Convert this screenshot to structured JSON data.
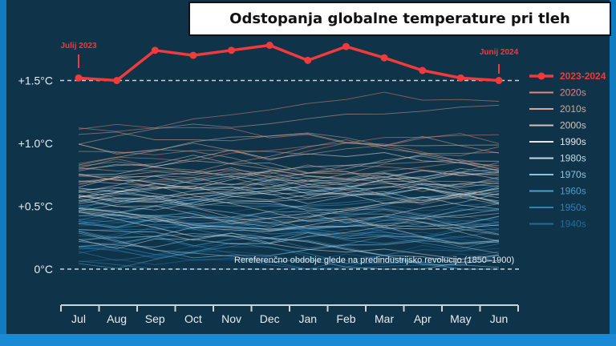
{
  "title": "Odstopanja globalne temperature pri tleh",
  "colors": {
    "background": "#0f3349",
    "frame": "#0f7bc0",
    "highlight": "#ef3b3b",
    "axis": "#c9d4dc",
    "label": "#e6edf2"
  },
  "chart_data": {
    "type": "line",
    "categories": [
      "Jul",
      "Aug",
      "Sep",
      "Oct",
      "Nov",
      "Dec",
      "Jan",
      "Feb",
      "Mar",
      "Apr",
      "May",
      "Jun"
    ],
    "ylim": [
      0,
      2.0
    ],
    "y_ticks": [
      {
        "value": 0,
        "label": "0°C"
      },
      {
        "value": 0.5,
        "label": "+0.5°C"
      },
      {
        "value": 1.0,
        "label": "+1.0°C"
      },
      {
        "value": 1.5,
        "label": "+1.5°C"
      }
    ],
    "reference_lines": [
      {
        "value": 1.5
      },
      {
        "value": 0,
        "label": "Rereferenčno obdobje glede na predindustrijsko revolucijo (1850–1900)"
      }
    ],
    "highlight_series": {
      "name": "2023-2024",
      "values": [
        1.52,
        1.5,
        1.74,
        1.7,
        1.74,
        1.78,
        1.66,
        1.77,
        1.68,
        1.58,
        1.52,
        1.5
      ],
      "start_label": "Julij 2023",
      "end_label": "Junij 2024"
    },
    "legend": {
      "position": "right",
      "items": [
        {
          "name": "2023-2024",
          "color": "#ef3b3b"
        },
        {
          "name": "2020s",
          "color": "#e28a78"
        },
        {
          "name": "2010s",
          "color": "#d8a796"
        },
        {
          "name": "2000s",
          "color": "#d4c2b8"
        },
        {
          "name": "1990s",
          "color": "#e6e6e6"
        },
        {
          "name": "1980s",
          "color": "#c3dbe8"
        },
        {
          "name": "1970s",
          "color": "#8fc3dd"
        },
        {
          "name": "1960s",
          "color": "#4f9ec8"
        },
        {
          "name": "1950s",
          "color": "#2f82b4"
        },
        {
          "name": "1940s",
          "color": "#226c9c"
        }
      ]
    },
    "decades": [
      {
        "name": "2020s",
        "count": 4,
        "base": 1.0
      },
      {
        "name": "2010s",
        "count": 10,
        "base": 0.88
      },
      {
        "name": "2000s",
        "count": 10,
        "base": 0.68
      },
      {
        "name": "1990s",
        "count": 10,
        "base": 0.55
      },
      {
        "name": "1980s",
        "count": 10,
        "base": 0.45
      },
      {
        "name": "1970s",
        "count": 10,
        "base": 0.35
      },
      {
        "name": "1960s",
        "count": 10,
        "base": 0.28
      },
      {
        "name": "1950s",
        "count": 10,
        "base": 0.24
      },
      {
        "name": "1940s",
        "count": 10,
        "base": 0.3
      }
    ]
  }
}
